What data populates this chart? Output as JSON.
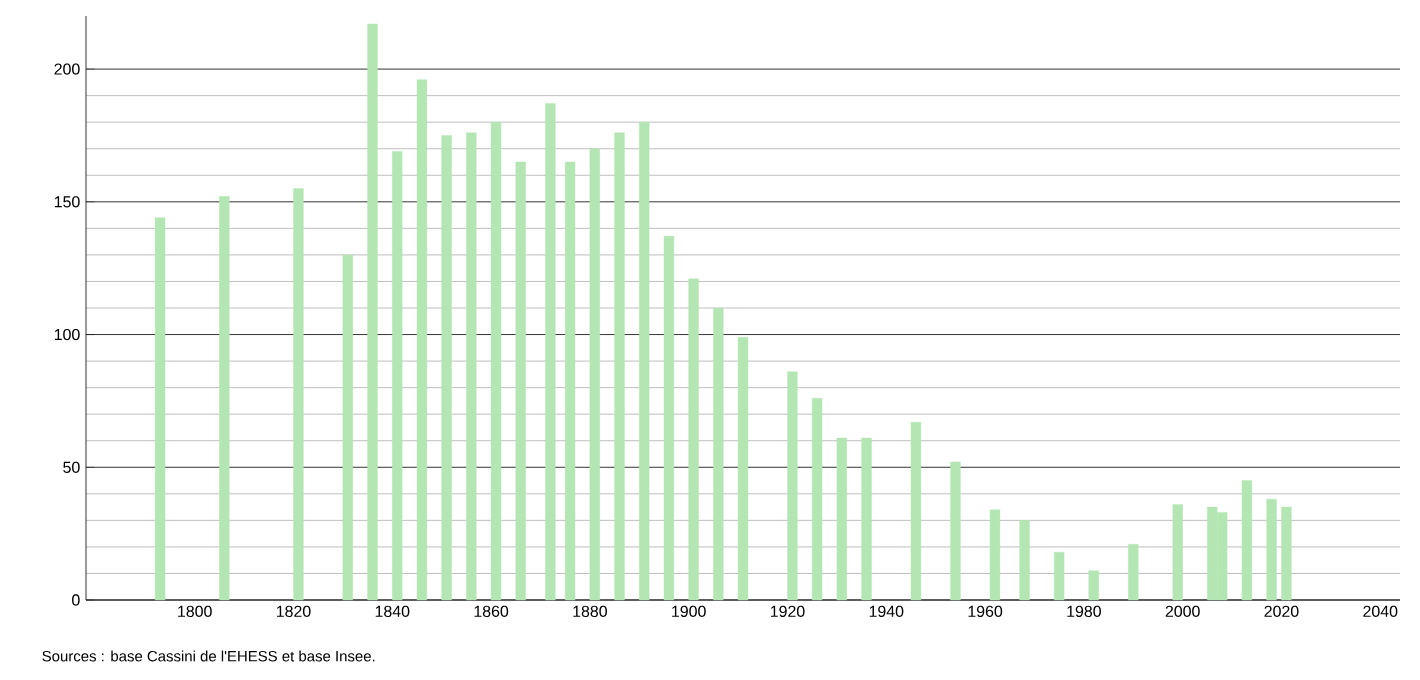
{
  "chart_data": {
    "type": "bar",
    "x": [
      1793,
      1806,
      1821,
      1831,
      1836,
      1841,
      1846,
      1851,
      1856,
      1861,
      1866,
      1872,
      1876,
      1881,
      1886,
      1891,
      1896,
      1901,
      1906,
      1911,
      1921,
      1926,
      1931,
      1936,
      1946,
      1954,
      1962,
      1968,
      1975,
      1982,
      1990,
      1999,
      2006,
      2008,
      2013,
      2018,
      2021
    ],
    "values": [
      144,
      152,
      155,
      130,
      217,
      169,
      196,
      175,
      176,
      180,
      165,
      187,
      165,
      170,
      176,
      180,
      137,
      121,
      110,
      99,
      86,
      76,
      61,
      61,
      67,
      52,
      34,
      30,
      18,
      11,
      21,
      36,
      35,
      33,
      45,
      38,
      35
    ],
    "color": "#b3e6b3",
    "xlim": [
      1778,
      2044
    ],
    "xticks": [
      1800,
      1820,
      1840,
      1860,
      1880,
      1900,
      1920,
      1940,
      1960,
      1980,
      2000,
      2020,
      2040
    ],
    "ylim": [
      0,
      220
    ],
    "yticks": [
      0,
      50,
      100,
      150,
      200
    ],
    "grid": "y",
    "annotations": [
      "Sources : base Cassini de l'EHESS et base Insee."
    ]
  }
}
